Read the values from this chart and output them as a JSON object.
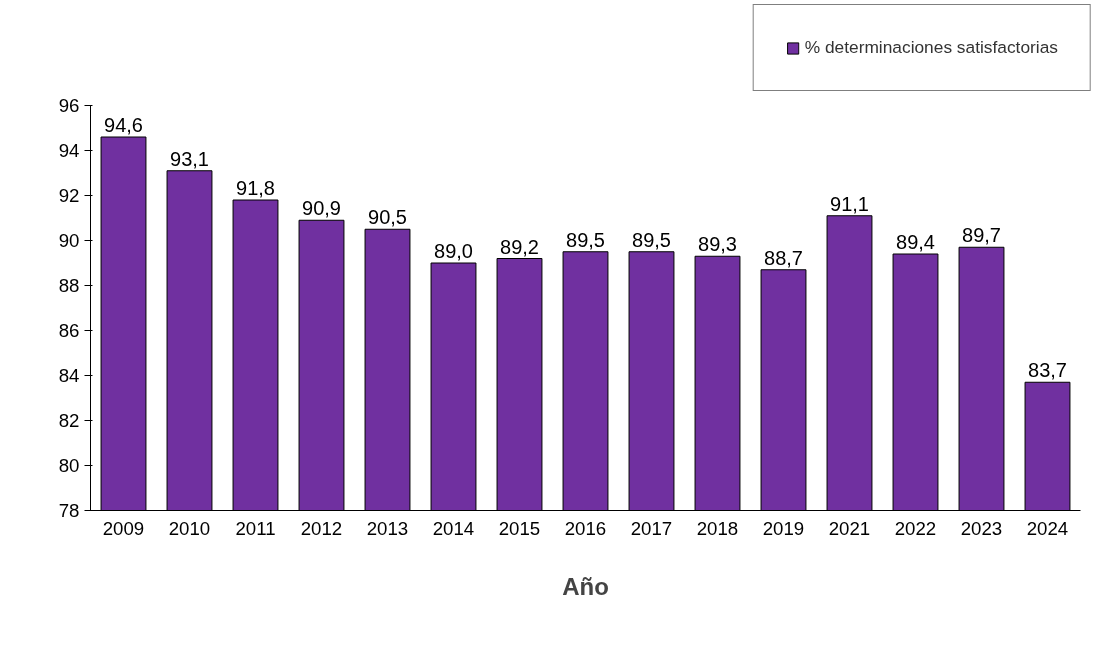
{
  "chart_data": {
    "type": "bar",
    "xlabel": "Año",
    "categories": [
      "2009",
      "2010",
      "2011",
      "2012",
      "2013",
      "2014",
      "2015",
      "2016",
      "2017",
      "2018",
      "2019",
      "2021",
      "2022",
      "2023",
      "2024"
    ],
    "series": [
      {
        "name": "% determinaciones satisfactorias",
        "color": "#7030a0",
        "values": [
          94.6,
          93.1,
          91.8,
          90.9,
          90.5,
          89.0,
          89.2,
          89.5,
          89.5,
          89.3,
          88.7,
          91.1,
          89.4,
          89.7,
          83.7
        ],
        "value_labels": [
          "94,6",
          "93,1",
          "91,8",
          "90,9",
          "90,5",
          "89,0",
          "89,2",
          "89,5",
          "89,5",
          "89,3",
          "88,7",
          "91,1",
          "89,4",
          "89,7",
          "83,7"
        ]
      }
    ],
    "ylim": [
      78,
      96
    ],
    "yticks": [
      78,
      80,
      82,
      84,
      86,
      88,
      90,
      92,
      94,
      96
    ],
    "grid": false,
    "legend": "top right"
  }
}
